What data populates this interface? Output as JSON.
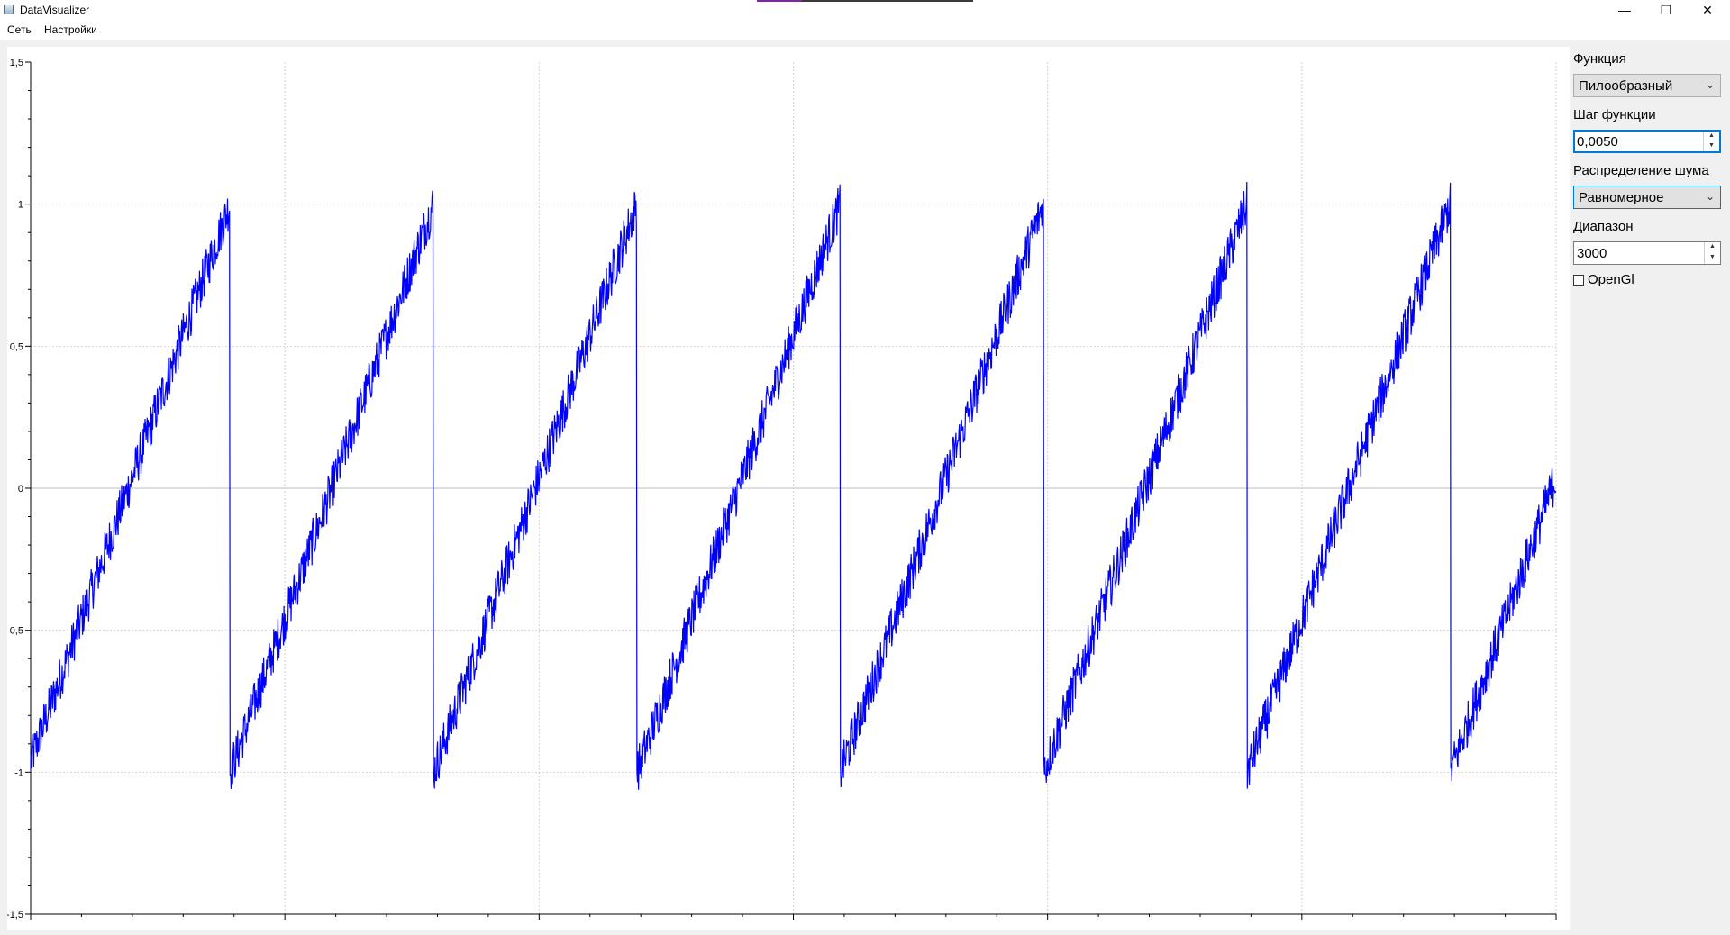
{
  "window": {
    "title": "DataVisualizer",
    "controls": {
      "minimize": "—",
      "restore": "❐",
      "close": "✕"
    }
  },
  "menu": {
    "items": [
      "Сеть",
      "Настройки"
    ]
  },
  "sidebar": {
    "function_label": "Функция",
    "function_value": "Пилообразный",
    "step_label": "Шаг функции",
    "step_value": "0,0050",
    "noise_label": "Распределение шума",
    "noise_value": "Равномерное",
    "range_label": "Диапазон",
    "range_value": "3000",
    "opengl_label": "OpenGl",
    "opengl_checked": false
  },
  "chart_data": {
    "type": "line",
    "ylim": [
      -1.5,
      1.5
    ],
    "xlim": [
      0,
      3000
    ],
    "yticks": [
      "1,5",
      "1",
      "0,5",
      "0",
      "-0,5",
      "-1",
      "-1,5"
    ],
    "grid": true,
    "series": [
      {
        "color": "#0000ff",
        "waveform": "sawtooth",
        "amplitude": 1,
        "period": 400,
        "noise": "uniform",
        "noise_amplitude": 0.08,
        "points": 3000
      }
    ]
  }
}
